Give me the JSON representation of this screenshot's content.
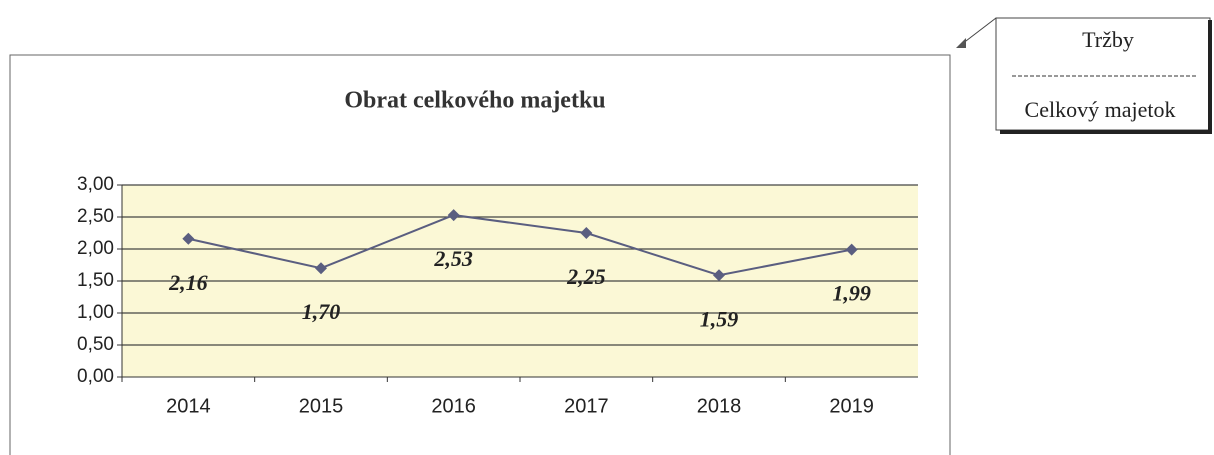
{
  "chart_data": {
    "type": "line",
    "title": "Obrat celkového majetku",
    "categories": [
      "2014",
      "2015",
      "2016",
      "2017",
      "2018",
      "2019"
    ],
    "series": [
      {
        "name": "Obrat celkového majetku",
        "color": "#5a5e80",
        "values": [
          2.16,
          1.7,
          2.53,
          2.25,
          1.59,
          1.99
        ],
        "value_labels": [
          "2,16",
          "1,70",
          "2,53",
          "2,25",
          "1,59",
          "1,99"
        ]
      }
    ],
    "ylim": [
      0,
      3
    ],
    "yticks": [
      {
        "value": 0,
        "label": "0,00"
      },
      {
        "value": 0.5,
        "label": "0,50"
      },
      {
        "value": 1,
        "label": "1,00"
      },
      {
        "value": 1.5,
        "label": "1,50"
      },
      {
        "value": 2,
        "label": "2,00"
      },
      {
        "value": 2.5,
        "label": "2,50"
      },
      {
        "value": 3,
        "label": "3,00"
      }
    ],
    "grid": true,
    "formula": {
      "numerator": "Tržby",
      "denominator": "Celkový majetok"
    }
  }
}
